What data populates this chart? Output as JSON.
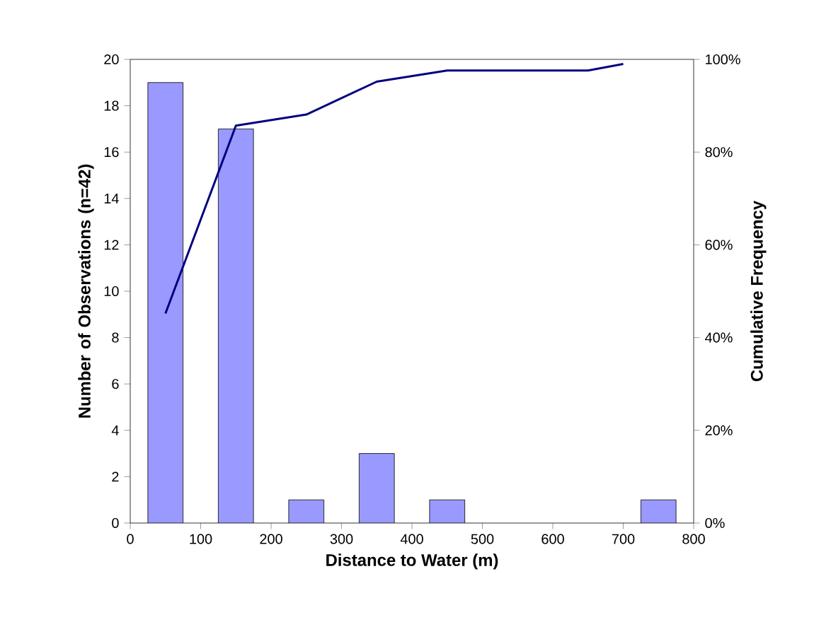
{
  "chart_data": {
    "type": "bar",
    "xlabel": "Distance to Water (m)",
    "ylabel": "Number of Observations (n=42)",
    "y2label": "Cumulative Frequency",
    "xlim": [
      0,
      800
    ],
    "xticks": [
      0,
      100,
      200,
      300,
      400,
      500,
      600,
      700,
      800
    ],
    "ylim": [
      0,
      20
    ],
    "yticks": [
      0,
      2,
      4,
      6,
      8,
      10,
      12,
      14,
      16,
      18,
      20
    ],
    "y2lim": [
      0,
      100
    ],
    "y2ticks": [
      {
        "value": 0,
        "label": "0%"
      },
      {
        "value": 20,
        "label": "20%"
      },
      {
        "value": 40,
        "label": "40%"
      },
      {
        "value": 60,
        "label": "60%"
      },
      {
        "value": 80,
        "label": "80%"
      },
      {
        "value": 100,
        "label": "100%"
      }
    ],
    "marker": "none",
    "series": [
      {
        "color": "#9999ff",
        "x": [
          50,
          150,
          250,
          350,
          450,
          750
        ],
        "values": [
          19,
          17,
          1,
          3,
          1,
          1
        ]
      },
      {
        "type": "line",
        "axis": "y2",
        "color": "#000080",
        "line_style": "solid",
        "x": [
          50,
          150,
          250,
          350,
          450,
          550,
          650,
          700
        ],
        "values": [
          45.2,
          85.7,
          88.1,
          95.2,
          97.6,
          97.6,
          97.6,
          99
        ]
      }
    ]
  }
}
